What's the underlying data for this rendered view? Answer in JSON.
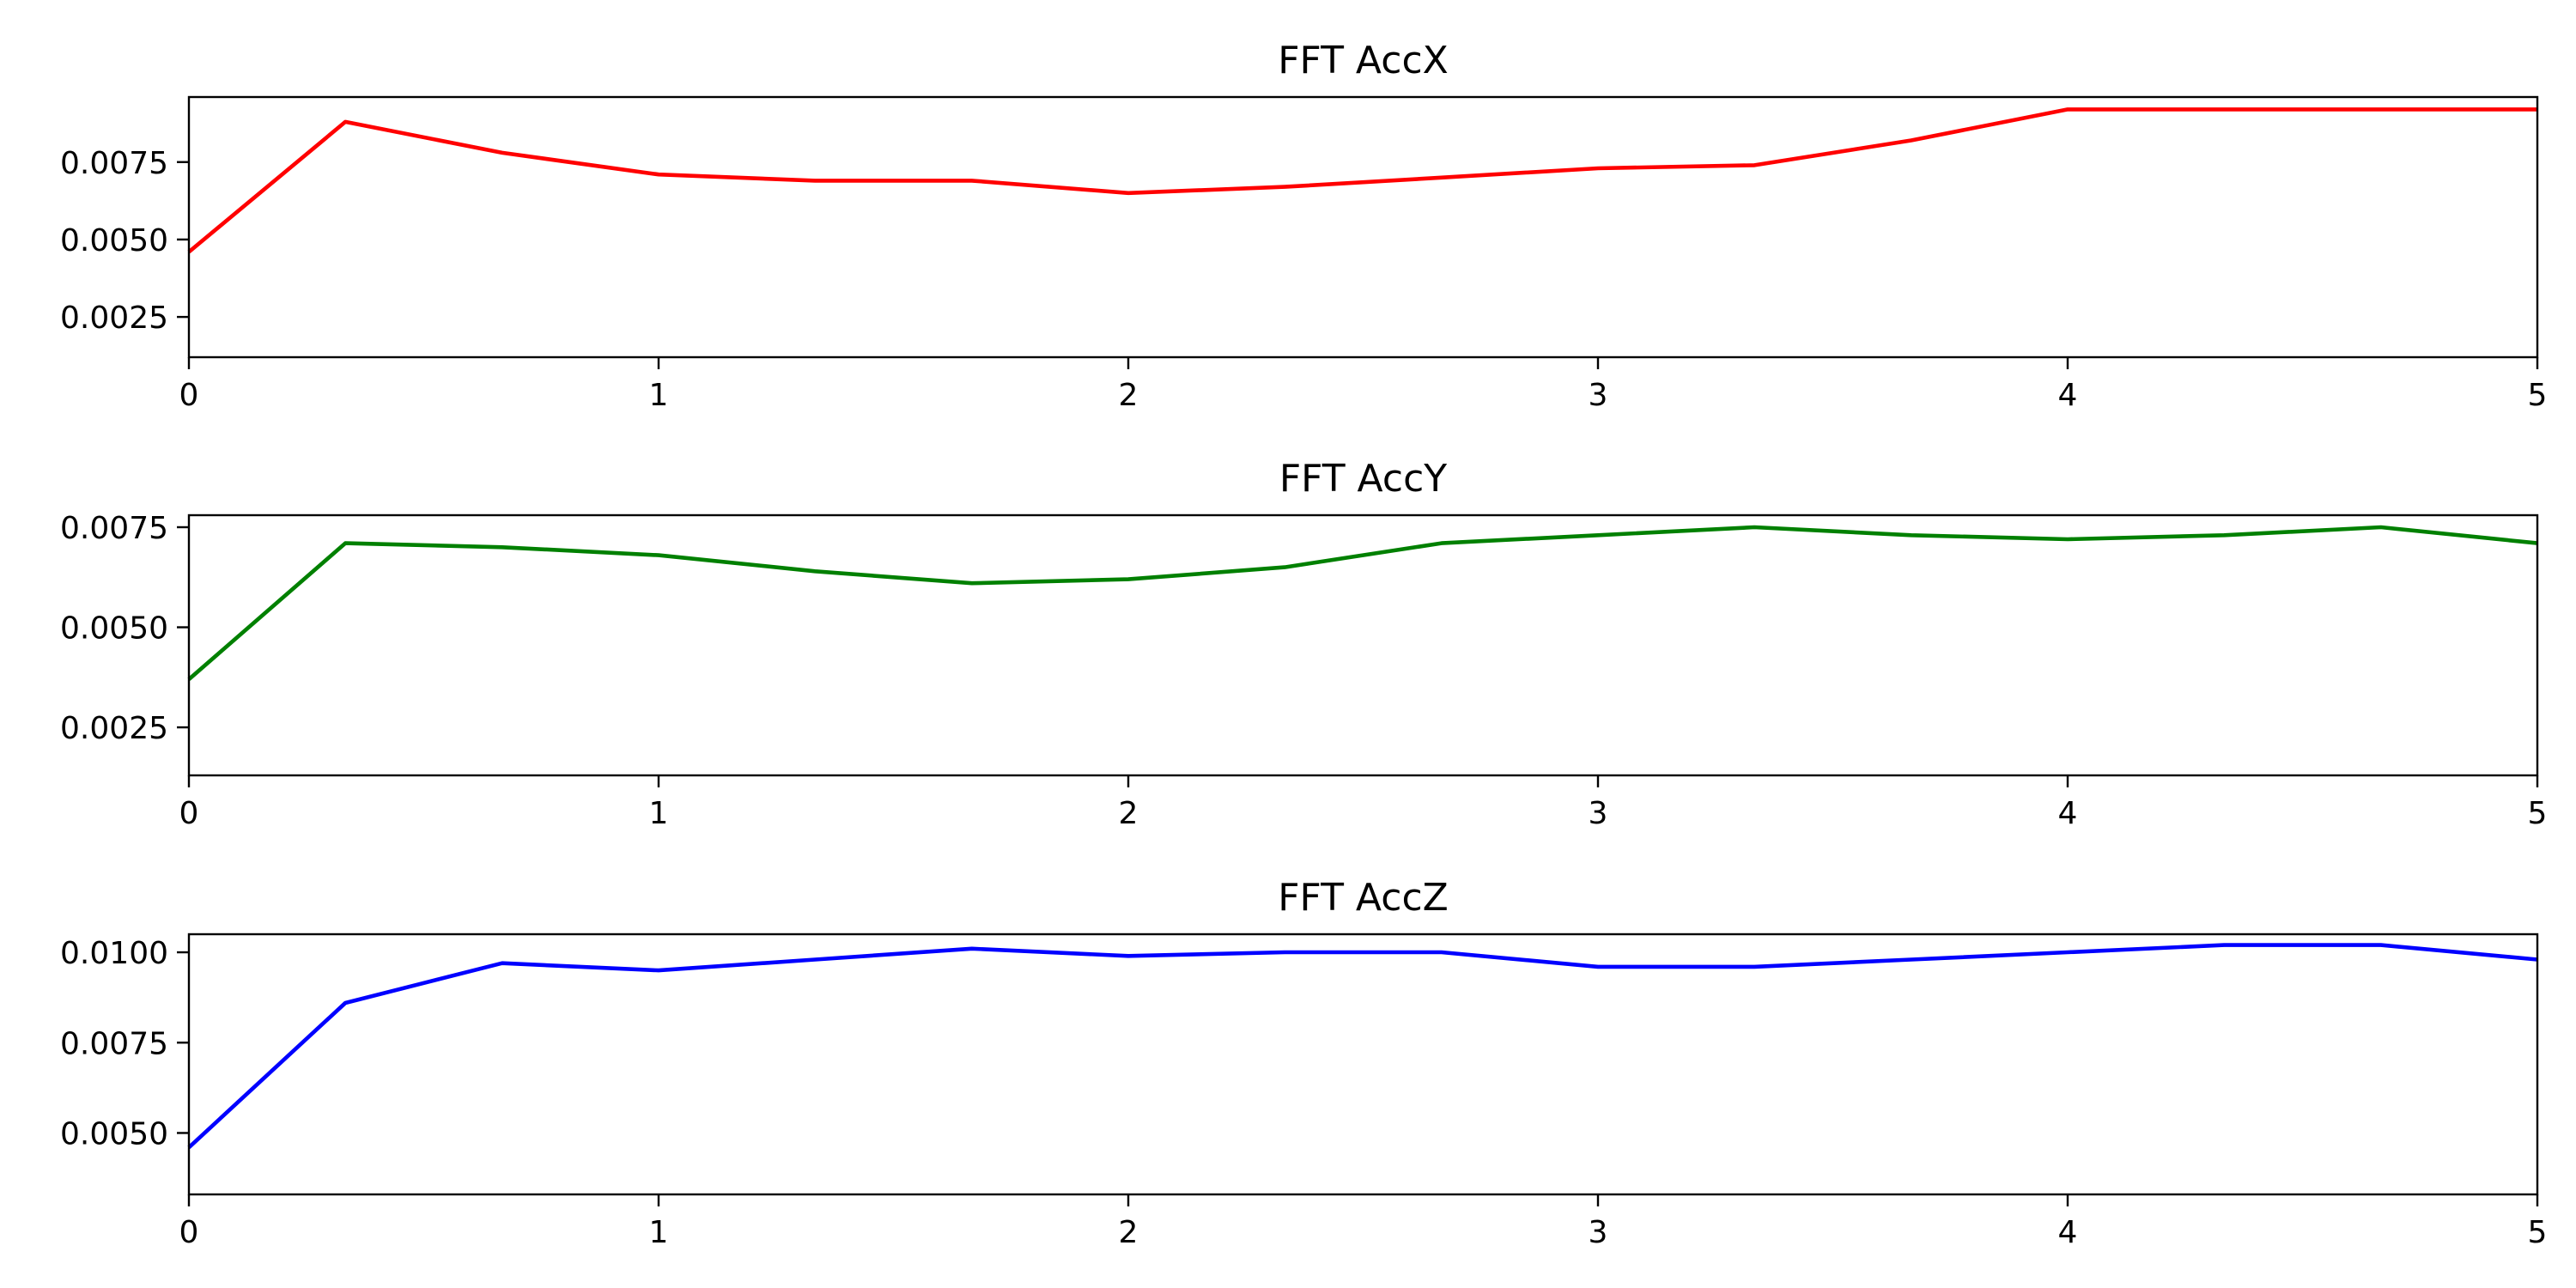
{
  "chart_data": [
    {
      "type": "line",
      "title": "FFT AccX",
      "xlim": [
        0,
        5
      ],
      "ylim": [
        0.0012,
        0.0096
      ],
      "x_ticks": [
        "0",
        "1",
        "2",
        "3",
        "4",
        "5"
      ],
      "y_ticks": [
        "0.0025",
        "0.0050",
        "0.0075"
      ],
      "color": "#ff0000",
      "x": [
        0,
        0.333,
        0.667,
        1.0,
        1.333,
        1.667,
        2.0,
        2.333,
        2.667,
        3.0,
        3.333,
        3.667,
        4.0,
        4.333,
        4.667,
        5.0
      ],
      "values": [
        0.0046,
        0.0088,
        0.0078,
        0.0071,
        0.0069,
        0.0069,
        0.0065,
        0.0067,
        0.007,
        0.0073,
        0.0074,
        0.0082,
        0.0092,
        0.0092,
        0.0092,
        0.0092
      ]
    },
    {
      "type": "line",
      "title": "FFT AccY",
      "xlim": [
        0,
        5
      ],
      "ylim": [
        0.0013,
        0.0078
      ],
      "x_ticks": [
        "0",
        "1",
        "2",
        "3",
        "4",
        "5"
      ],
      "y_ticks": [
        "0.0025",
        "0.0050",
        "0.0075"
      ],
      "color": "#008000",
      "x": [
        0,
        0.333,
        0.667,
        1.0,
        1.333,
        1.667,
        2.0,
        2.333,
        2.667,
        3.0,
        3.333,
        3.667,
        4.0,
        4.333,
        4.667,
        5.0
      ],
      "values": [
        0.0037,
        0.0071,
        0.007,
        0.0068,
        0.0064,
        0.0061,
        0.0062,
        0.0065,
        0.0071,
        0.0073,
        0.0075,
        0.0073,
        0.0072,
        0.0073,
        0.0075,
        0.0071
      ]
    },
    {
      "type": "line",
      "title": "FFT AccZ",
      "xlim": [
        0,
        5
      ],
      "ylim": [
        0.0033,
        0.0105
      ],
      "x_ticks": [
        "0",
        "1",
        "2",
        "3",
        "4",
        "5"
      ],
      "y_ticks": [
        "0.0050",
        "0.0075",
        "0.0100"
      ],
      "color": "#0000ff",
      "x": [
        0,
        0.333,
        0.667,
        1.0,
        1.333,
        1.667,
        2.0,
        2.333,
        2.667,
        3.0,
        3.333,
        3.667,
        4.0,
        4.333,
        4.667,
        5.0
      ],
      "values": [
        0.0046,
        0.0086,
        0.0097,
        0.0095,
        0.0098,
        0.0101,
        0.0099,
        0.01,
        0.01,
        0.0096,
        0.0096,
        0.0098,
        0.01,
        0.0102,
        0.0102,
        0.0098
      ]
    }
  ]
}
